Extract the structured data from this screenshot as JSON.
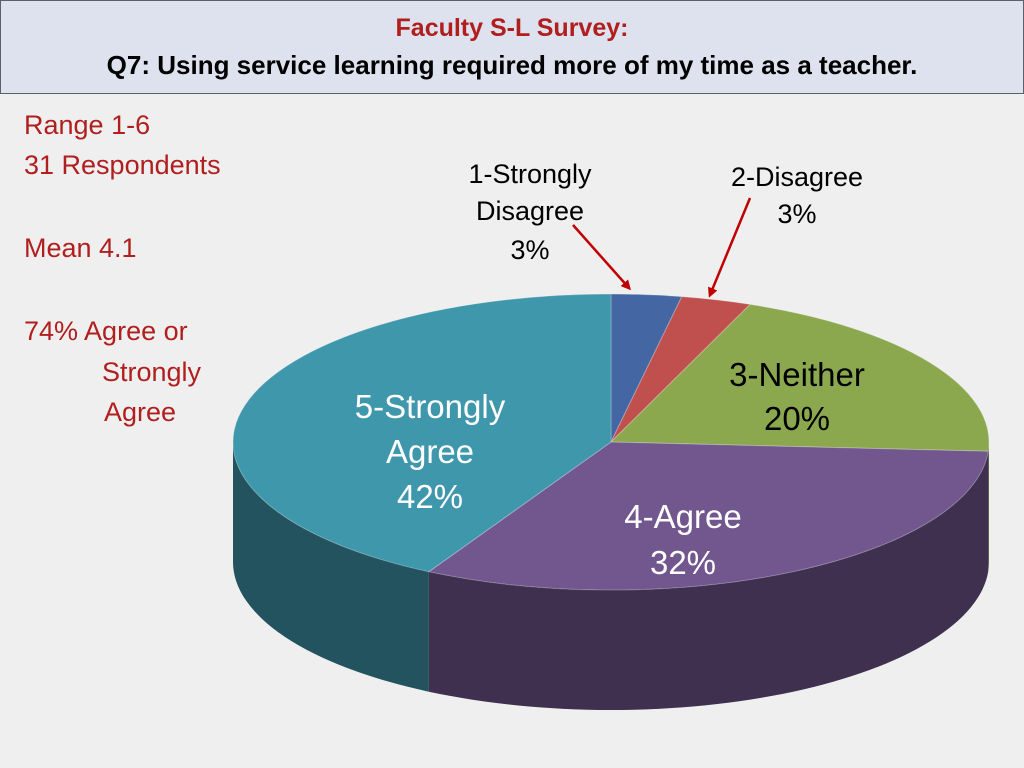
{
  "slide": {
    "title": "Faculty S-L Survey:",
    "subtitle": "Q7: Using service learning required more of my time as a teacher."
  },
  "stats": {
    "range": "Range 1-6",
    "respondents": "31 Respondents",
    "mean": "Mean 4.1",
    "agree_line1": "74% Agree or",
    "agree_line2": "Strongly",
    "agree_line3": "Agree"
  },
  "colors": {
    "title_red": "#b01e1e",
    "strongly_disagree": "#4467a3",
    "disagree": "#c0504d",
    "neither": "#8ba84e",
    "agree": "#72578f",
    "strongly_agree": "#3f97ac",
    "arrow": "#c00000"
  },
  "chart_data": {
    "type": "pie",
    "style": "3d",
    "slices": [
      {
        "label": "1-Strongly Disagree",
        "value": 3,
        "display": "3%",
        "color": "#4467a3"
      },
      {
        "label": "2-Disagree",
        "value": 3,
        "display": "3%",
        "color": "#c0504d"
      },
      {
        "label": "3-Neither",
        "value": 20,
        "display": "20%",
        "color": "#8ba84e"
      },
      {
        "label": "4-Agree",
        "value": 32,
        "display": "32%",
        "color": "#72578f"
      },
      {
        "label": "5-Strongly Agree",
        "value": 42,
        "display": "42%",
        "color": "#3f97ac"
      }
    ],
    "labels": {
      "s1_line1": "1-Strongly",
      "s1_line2": "Disagree",
      "s1_pct": "3%",
      "s2_line1": "2-Disagree",
      "s2_pct": "3%",
      "s3_line1": "3-Neither",
      "s3_pct": "20%",
      "s4_line1": "4-Agree",
      "s4_pct": "32%",
      "s5_line1": "5-Strongly",
      "s5_line2": "Agree",
      "s5_pct": "42%"
    }
  }
}
